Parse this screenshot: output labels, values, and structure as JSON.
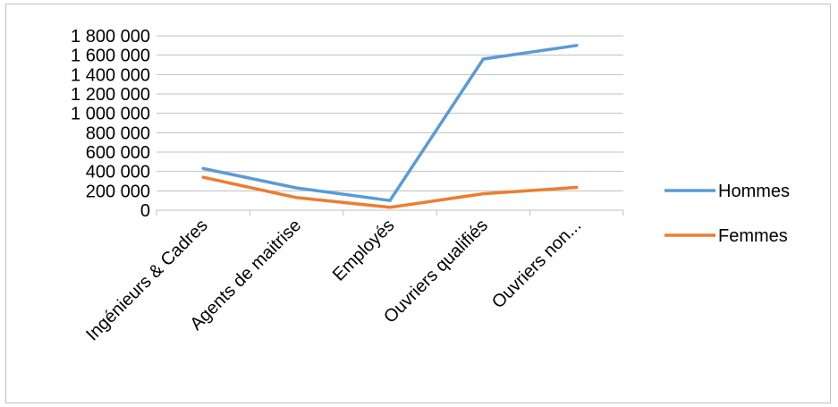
{
  "chart_data": {
    "type": "line",
    "title": "",
    "xlabel": "",
    "ylabel": "",
    "categories": [
      "Ingénieurs & Cadres",
      "Agents de maitrise",
      "Employés",
      "Ouvriers qualifiés",
      "Ouvriers non..."
    ],
    "series": [
      {
        "name": "Hommes",
        "color": "#5B9BD5",
        "values": [
          430000,
          230000,
          100000,
          1560000,
          1700000
        ]
      },
      {
        "name": "Femmes",
        "color": "#ED7D31",
        "values": [
          340000,
          130000,
          30000,
          170000,
          235000
        ]
      }
    ],
    "ylim": [
      0,
      1800000
    ],
    "yticks": [
      0,
      200000,
      400000,
      600000,
      800000,
      1000000,
      1200000,
      1400000,
      1600000,
      1800000
    ],
    "ytick_labels": [
      "0",
      "200 000",
      "400 000",
      "600 000",
      "800 000",
      "1 000 000",
      "1 200 000",
      "1 400 000",
      "1 600 000",
      "1 800 000"
    ],
    "grid": true,
    "legend_position": "right"
  }
}
